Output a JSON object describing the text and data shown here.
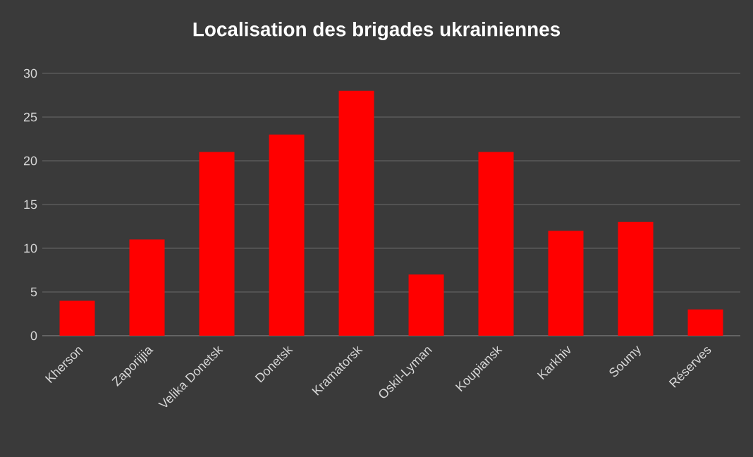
{
  "chart_data": {
    "type": "bar",
    "title": "Localisation des brigades ukrainiennes",
    "categories": [
      "Kherson",
      "Zaporijjia",
      "Velika Donetsk",
      "Donetsk",
      "Kramatorsk",
      "Oskil-Lyman",
      "Koupiansk",
      "Karkhiv",
      "Soumy",
      "Réserves"
    ],
    "values": [
      4,
      11,
      21,
      23,
      28,
      7,
      21,
      12,
      13,
      3
    ],
    "color": "#ff0000",
    "ylim": [
      0,
      30
    ],
    "yticks": [
      0,
      5,
      10,
      15,
      20,
      25,
      30
    ],
    "grid": "y"
  }
}
